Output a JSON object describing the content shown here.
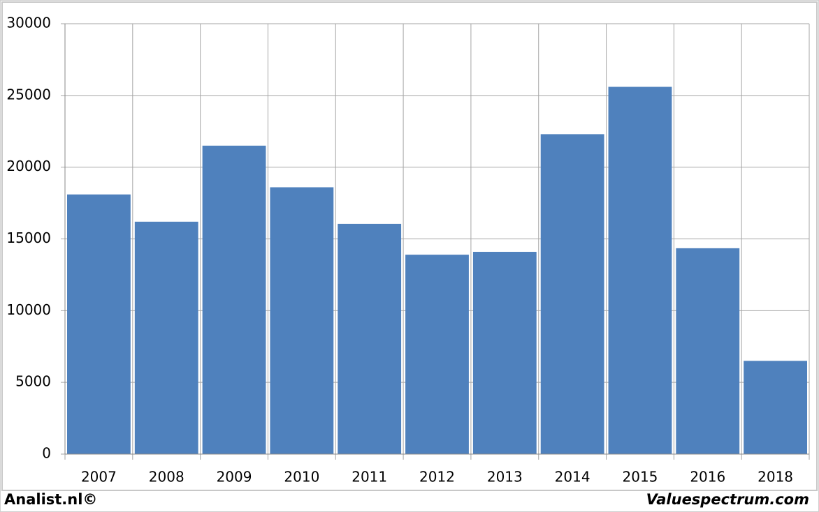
{
  "chart_data": {
    "type": "bar",
    "categories": [
      "2007",
      "2008",
      "2009",
      "2010",
      "2011",
      "2012",
      "2013",
      "2014",
      "2015",
      "2016",
      "2018"
    ],
    "values": [
      18100,
      16200,
      21500,
      18600,
      16050,
      13900,
      14100,
      22300,
      25600,
      14350,
      6500
    ],
    "color": "#4f81bd",
    "ylim": [
      0,
      30000
    ],
    "yticks": [
      0,
      5000,
      10000,
      15000,
      20000,
      25000,
      30000
    ],
    "grid": true
  },
  "footer": {
    "left": "Analist.nl©",
    "right": "Valuespectrum.com"
  }
}
